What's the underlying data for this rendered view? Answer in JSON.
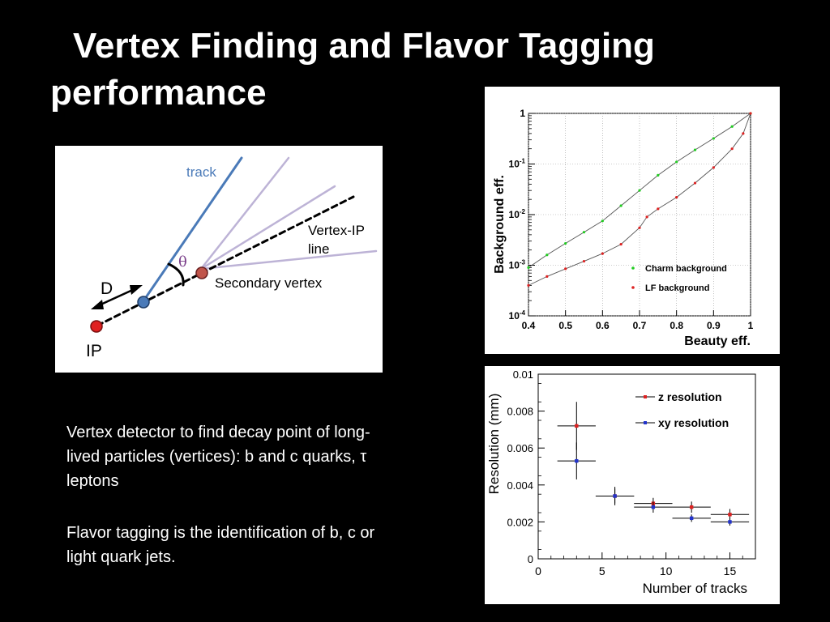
{
  "slide": {
    "title_line1": "Vertex Finding and Flavor Tagging",
    "title_line2": "performance",
    "paragraph1": "Vertex detector to find decay point of long-lived particles (vertices): b and c quarks, τ leptons",
    "paragraph2": "Flavor tagging is the identification of b, c or light quark jets."
  },
  "diagram": {
    "track_label": "track",
    "vertex_ip_label_line1": "Vertex-IP",
    "vertex_ip_label_line2": "line",
    "theta_label": "θ",
    "d_label": "D",
    "secondary_vertex_label": "Secondary vertex",
    "ip_label": "IP",
    "colors": {
      "track": "#4a7ab8",
      "other_tracks": "#bdb3d6",
      "ip_point": "#e02020",
      "track_point": "#4a7ab8",
      "secondary_vertex_point": "#c0544a",
      "theta_label": "#7a3e8a"
    }
  },
  "chart_data": [
    {
      "type": "line",
      "xlabel": "Beauty eff.",
      "ylabel": "Background eff.",
      "xlim": [
        0.4,
        1.0
      ],
      "ylim": [
        0.0001,
        1
      ],
      "y_scale": "log",
      "x_ticks": [
        "0.4",
        "0.5",
        "0.6",
        "0.7",
        "0.8",
        "0.9",
        "1"
      ],
      "y_ticks": [
        {
          "value": 1,
          "label": "1"
        },
        {
          "value": 0.1,
          "label": "10-1"
        },
        {
          "value": 0.01,
          "label": "10-2"
        },
        {
          "value": 0.001,
          "label": "10-3"
        },
        {
          "value": 0.0001,
          "label": "10-4"
        }
      ],
      "grid": true,
      "legend_position": "bottom-right",
      "series": [
        {
          "name": "Charm background",
          "color": "#22cc22",
          "x": [
            0.4,
            0.45,
            0.5,
            0.55,
            0.6,
            0.65,
            0.7,
            0.75,
            0.8,
            0.85,
            0.9,
            0.95,
            1.0
          ],
          "y": [
            0.0009,
            0.0016,
            0.0027,
            0.0045,
            0.0075,
            0.015,
            0.03,
            0.06,
            0.11,
            0.19,
            0.32,
            0.55,
            1.0
          ]
        },
        {
          "name": "LF background",
          "color": "#dd2222",
          "x": [
            0.4,
            0.45,
            0.5,
            0.55,
            0.6,
            0.65,
            0.7,
            0.72,
            0.75,
            0.8,
            0.85,
            0.9,
            0.95,
            0.98,
            1.0
          ],
          "y": [
            0.0004,
            0.0006,
            0.00085,
            0.0012,
            0.0017,
            0.0026,
            0.0055,
            0.009,
            0.013,
            0.022,
            0.042,
            0.085,
            0.2,
            0.4,
            1.0
          ]
        }
      ]
    },
    {
      "type": "scatter",
      "xlabel": "Number of tracks",
      "ylabel": "Resolution (mm)",
      "xlim": [
        0,
        17
      ],
      "ylim": [
        0,
        0.01
      ],
      "x_ticks": [
        "0",
        "5",
        "10",
        "15"
      ],
      "y_ticks": [
        "0",
        "0.002",
        "0.004",
        "0.006",
        "0.008",
        "0.01"
      ],
      "grid": false,
      "legend_position": "top-right",
      "series": [
        {
          "name": "z resolution",
          "color": "#dd2222",
          "x": [
            3,
            6,
            9,
            12,
            15
          ],
          "y": [
            0.0072,
            0.0034,
            0.003,
            0.0028,
            0.0024
          ],
          "x_err": [
            1.5,
            1.5,
            1.5,
            1.5,
            1.5
          ],
          "y_err": [
            0.0013,
            0.0004,
            0.0003,
            0.0003,
            0.0003
          ]
        },
        {
          "name": "xy resolution",
          "color": "#2233cc",
          "x": [
            3,
            6,
            9,
            12,
            15
          ],
          "y": [
            0.0053,
            0.0034,
            0.0028,
            0.0022,
            0.002
          ],
          "x_err": [
            1.5,
            1.5,
            1.5,
            1.5,
            1.5
          ],
          "y_err": [
            0.001,
            0.0005,
            0.0003,
            0.0002,
            0.0002
          ]
        }
      ]
    }
  ]
}
